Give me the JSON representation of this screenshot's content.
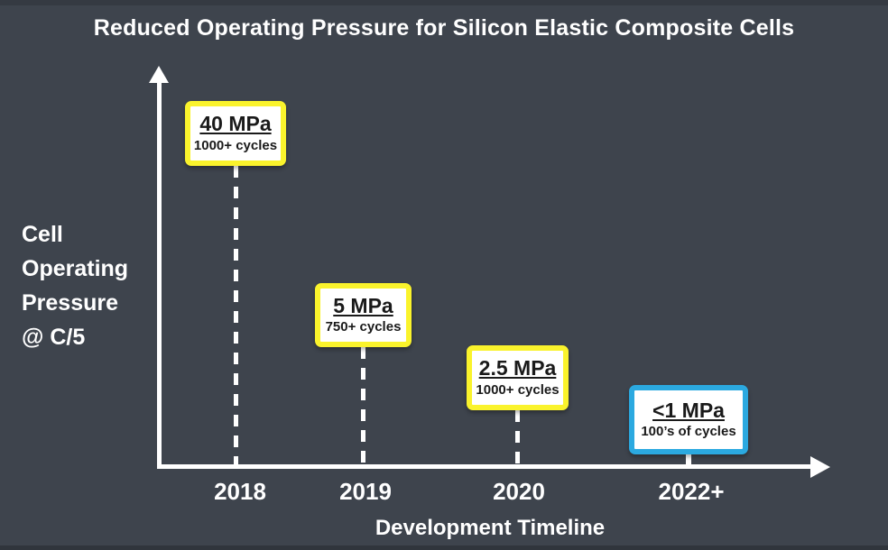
{
  "slide": {
    "title": "Reduced Operating Pressure for Silicon Elastic Composite Cells"
  },
  "axes": {
    "y_label_lines": [
      "Cell",
      "Operating",
      "Pressure",
      "@ C/5"
    ],
    "x_label": "Development Timeline"
  },
  "milestones": [
    {
      "year": "2018",
      "pressure": "40 MPa",
      "cycles": "1000+ cycles",
      "border_color": "#FAF32C"
    },
    {
      "year": "2019",
      "pressure": "5 MPa",
      "cycles": "750+ cycles",
      "border_color": "#FAF32C"
    },
    {
      "year": "2020",
      "pressure": "2.5 MPa",
      "cycles": "1000+ cycles",
      "border_color": "#FAF32C"
    },
    {
      "year": "2022+",
      "pressure": "<1 MPa",
      "cycles": "100’s of cycles",
      "border_color": "#2BA9E0"
    }
  ],
  "colors": {
    "background": "#3E444D",
    "axis_and_text": "#FFFFFF",
    "milestone_fill": "#FFFFFF",
    "milestone_text": "#1A1A1A",
    "highlight_yellow": "#FAF32C",
    "highlight_blue": "#2BA9E0"
  },
  "chart_data": {
    "type": "scatter",
    "title": "Reduced Operating Pressure for Silicon Elastic Composite Cells",
    "xlabel": "Development Timeline",
    "ylabel": "Cell Operating Pressure @ C/5",
    "categories": [
      "2018",
      "2019",
      "2020",
      "2022+"
    ],
    "series": [
      {
        "name": "Cell operating pressure (MPa)",
        "values": [
          40,
          5,
          2.5,
          1
        ]
      }
    ],
    "value_labels": [
      "40 MPa",
      "5 MPa",
      "2.5 MPa",
      "<1 MPa"
    ],
    "annotations": [
      "1000+ cycles",
      "750+ cycles",
      "1000+ cycles",
      "100’s of cycles"
    ],
    "grid": false,
    "legend": false,
    "notes": "Last value is an upper bound (<1 MPa); final milestone highlighted in blue, others in yellow"
  }
}
